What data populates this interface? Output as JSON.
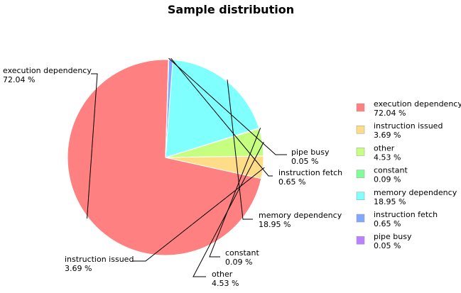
{
  "chart_data": {
    "type": "pie",
    "title": "Sample distribution",
    "legend_position": "right",
    "slices": [
      {
        "label": "execution dependency",
        "percent_text": "72.04 %",
        "value": 72.04,
        "color": "#ff8080"
      },
      {
        "label": "instruction issued",
        "percent_text": "3.69 %",
        "value": 3.69,
        "color": "#ffdd88"
      },
      {
        "label": "other",
        "percent_text": "4.53 %",
        "value": 4.53,
        "color": "#c6ff80"
      },
      {
        "label": "constant",
        "percent_text": "0.09 %",
        "value": 0.09,
        "color": "#80ff99"
      },
      {
        "label": "memory dependency",
        "percent_text": "18.95 %",
        "value": 18.95,
        "color": "#80ffff"
      },
      {
        "label": "instruction fetch",
        "percent_text": "0.65 %",
        "value": 0.65,
        "color": "#80a8ff"
      },
      {
        "label": "pipe busy",
        "percent_text": "0.05 %",
        "value": 0.05,
        "color": "#bb80ff"
      }
    ]
  }
}
